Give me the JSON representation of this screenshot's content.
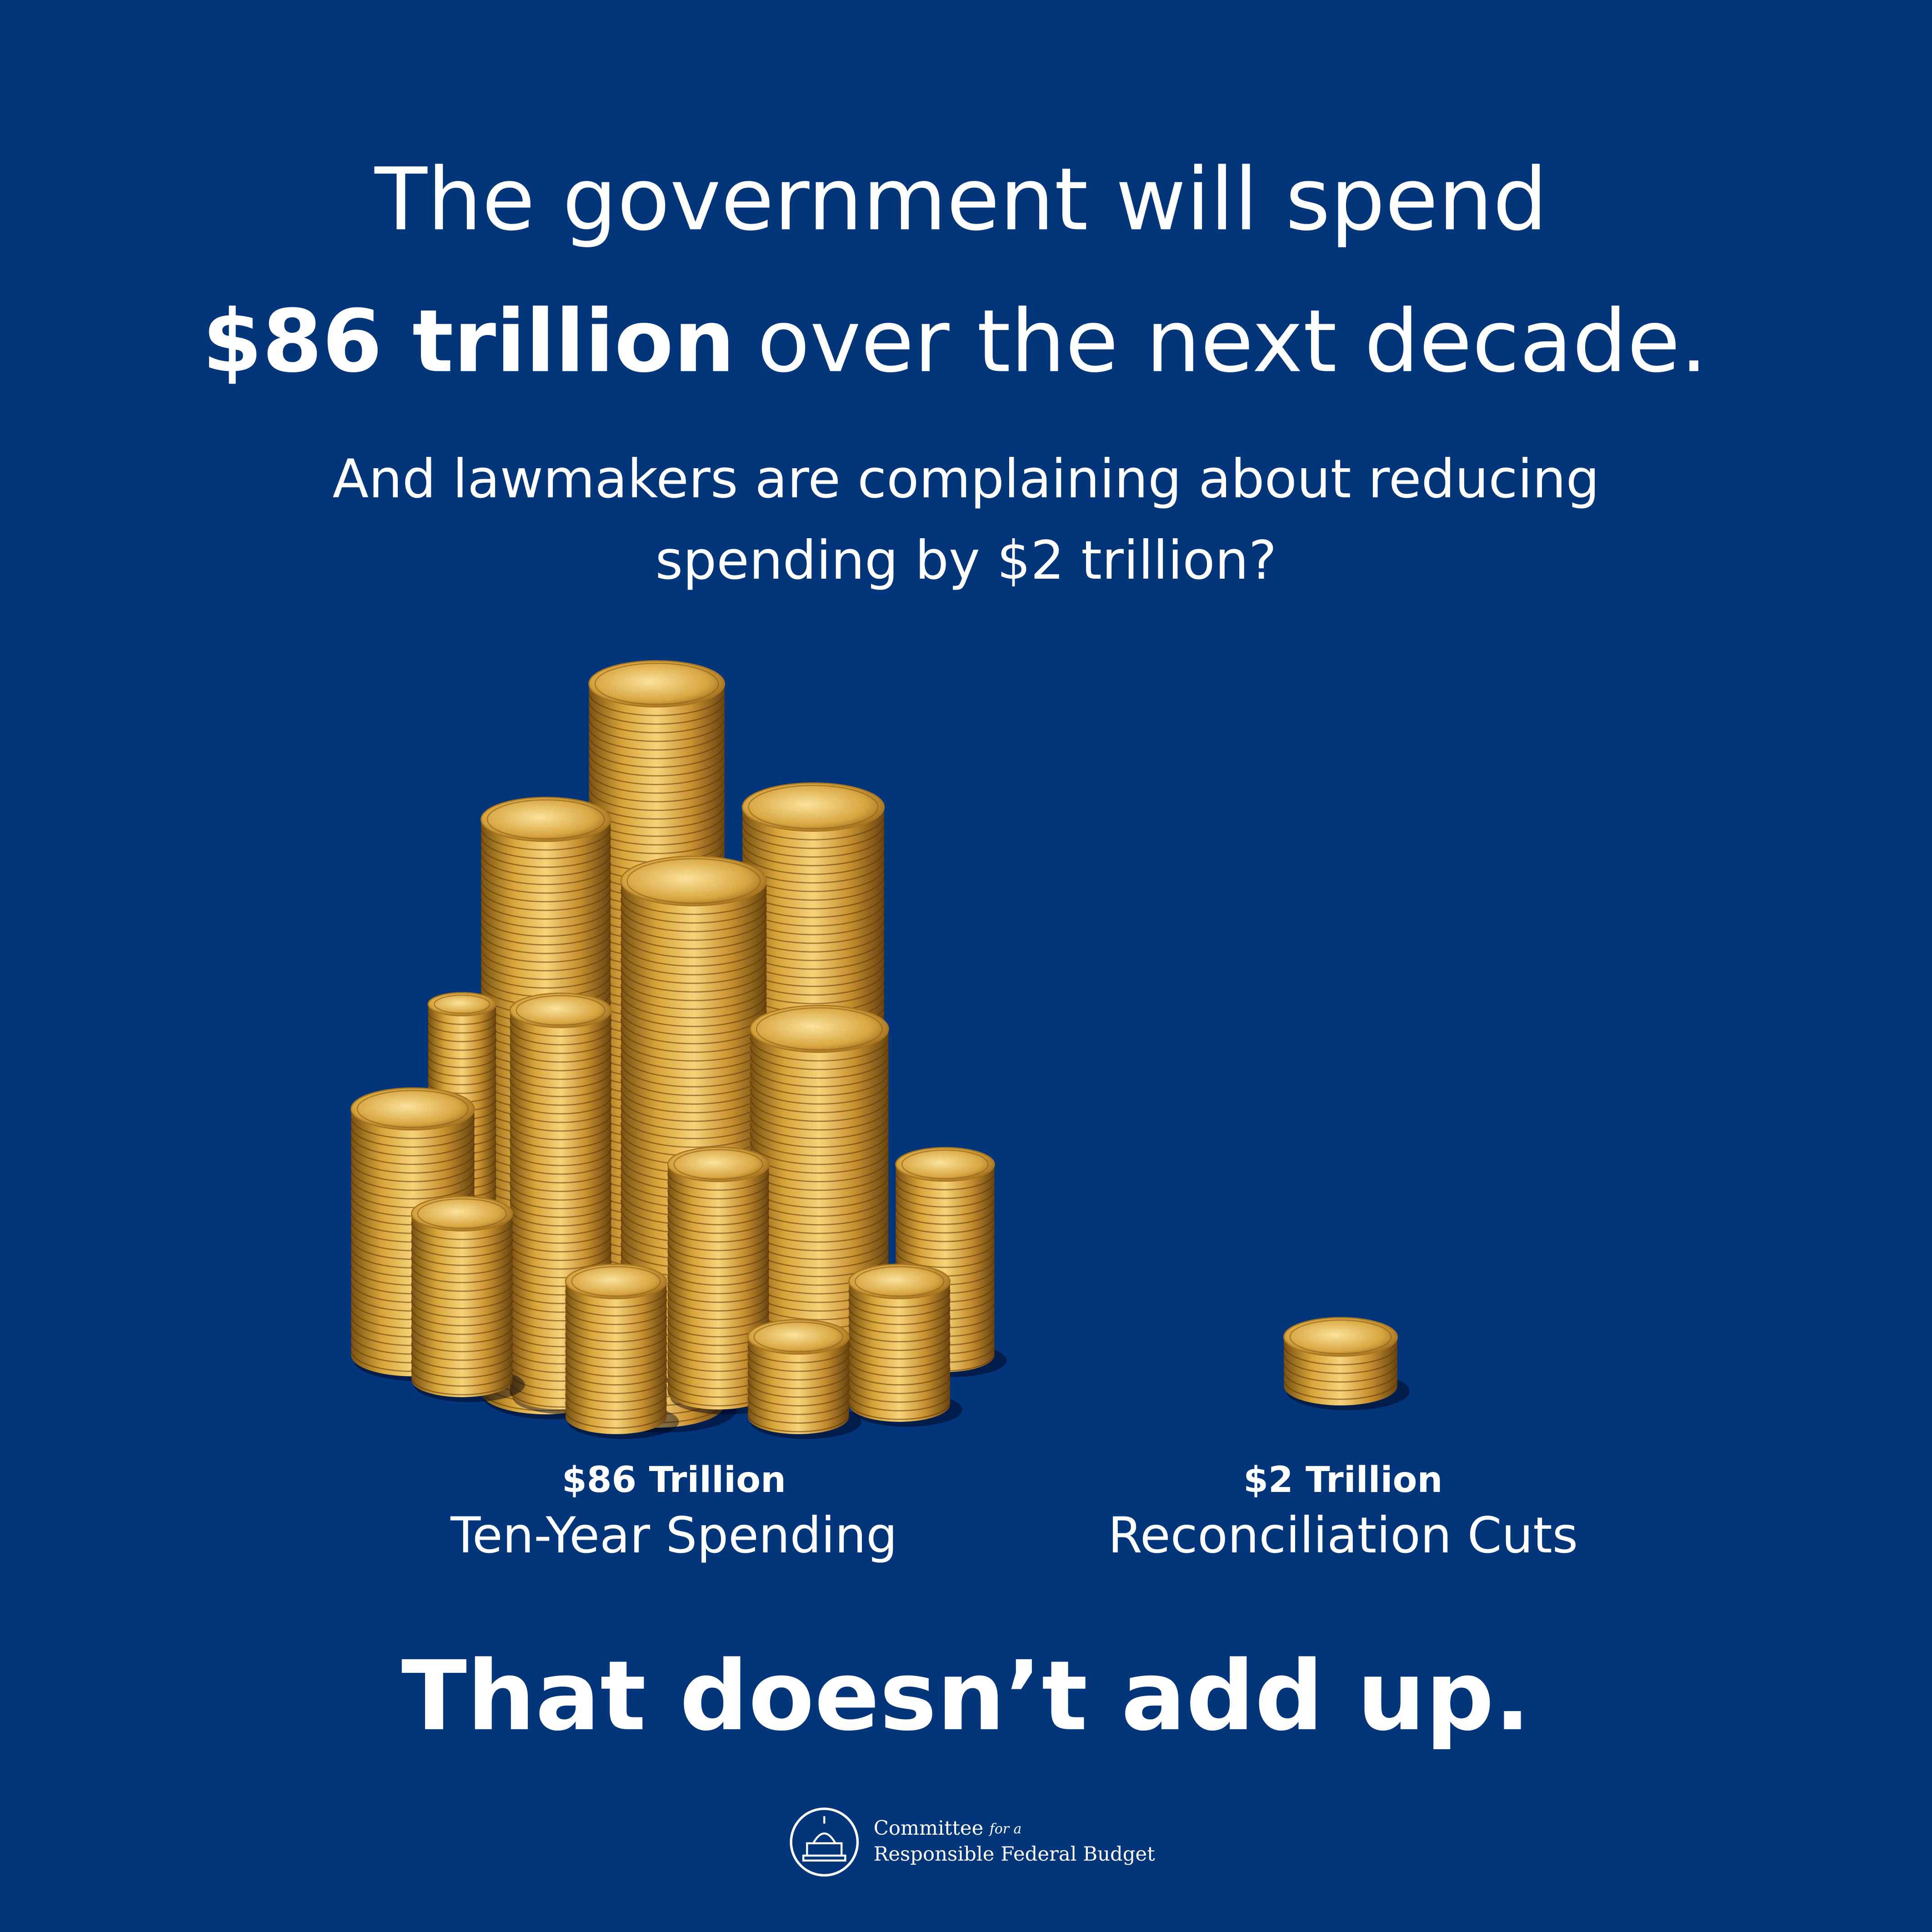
{
  "headline": {
    "line1": "The government will spend",
    "emphasis": "$86 trillion",
    "rest": "over the next decade."
  },
  "subhead": {
    "line1": "And lawmakers are complaining about reducing",
    "line2": "spending by $2 trillion?"
  },
  "items": [
    {
      "amount": "$86 Trillion",
      "label": "Ten-Year Spending"
    },
    {
      "amount": "$2 Trillion",
      "label": "Reconciliation Cuts"
    }
  ],
  "tagline": "That doesn’t add up.",
  "logo": {
    "line1": "Committee",
    "for": "for a",
    "line2": "Responsible Federal Budget"
  }
}
